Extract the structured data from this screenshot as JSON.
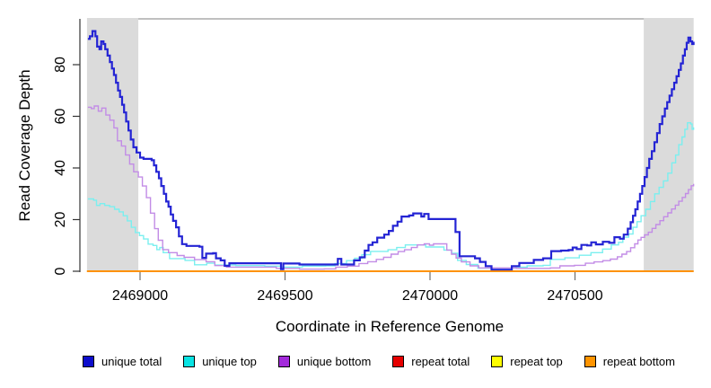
{
  "chart_data": {
    "type": "line",
    "title": "",
    "xlabel": "Coordinate in Reference Genome",
    "ylabel": "Read Coverage Depth",
    "x_ticks": [
      2469000,
      2469500,
      2470000,
      2470500
    ],
    "y_ticks": [
      0,
      20,
      40,
      60,
      80
    ],
    "xlim": [
      2468817,
      2470909
    ],
    "ylim": [
      0,
      97
    ],
    "grid": false,
    "step_interpolation": true,
    "legend_position": "bottom",
    "frame_color": "#808080",
    "axis_color": "#333333",
    "highlight_color": "#DBDBDB",
    "highlight_regions": [
      {
        "x0": 2468817,
        "x1": 2468994
      },
      {
        "x0": 2470737,
        "x1": 2470909
      }
    ],
    "series": [
      {
        "name": "unique total",
        "color": "#2424D4",
        "legend_color": "#0D0DCC",
        "width": 2.2,
        "points": [
          [
            2468820,
            90
          ],
          [
            2468827,
            91
          ],
          [
            2468836,
            93
          ],
          [
            2468846,
            91
          ],
          [
            2468852,
            87
          ],
          [
            2468860,
            86
          ],
          [
            2468866,
            89
          ],
          [
            2468874,
            88
          ],
          [
            2468880,
            86
          ],
          [
            2468888,
            83.5
          ],
          [
            2468896,
            81
          ],
          [
            2468903,
            78.5
          ],
          [
            2468910,
            76
          ],
          [
            2468917,
            73
          ],
          [
            2468924,
            70
          ],
          [
            2468931,
            67.5
          ],
          [
            2468938,
            64.5
          ],
          [
            2468945,
            61.5
          ],
          [
            2468952,
            58
          ],
          [
            2468960,
            54.5
          ],
          [
            2468968,
            51
          ],
          [
            2468977,
            48
          ],
          [
            2468988,
            46
          ],
          [
            2469000,
            44
          ],
          [
            2469012,
            43.5
          ],
          [
            2469040,
            43
          ],
          [
            2469048,
            41
          ],
          [
            2469056,
            38.5
          ],
          [
            2469065,
            36
          ],
          [
            2469073,
            33
          ],
          [
            2469082,
            30
          ],
          [
            2469090,
            27
          ],
          [
            2469098,
            25
          ],
          [
            2469106,
            22
          ],
          [
            2469114,
            19.5
          ],
          [
            2469124,
            17
          ],
          [
            2469134,
            13.5
          ],
          [
            2469145,
            10.5
          ],
          [
            2469160,
            9.8
          ],
          [
            2469205,
            9.5
          ],
          [
            2469215,
            5.2
          ],
          [
            2469228,
            6.8
          ],
          [
            2469252,
            7
          ],
          [
            2469262,
            5
          ],
          [
            2469278,
            4.2
          ],
          [
            2469292,
            2.1
          ],
          [
            2469308,
            3.1
          ],
          [
            2469478,
            3.1
          ],
          [
            2469486,
            0.8
          ],
          [
            2469494,
            3
          ],
          [
            2469550,
            2.6
          ],
          [
            2469636,
            2.6
          ],
          [
            2469682,
            4.8
          ],
          [
            2469694,
            2.6
          ],
          [
            2469738,
            4.2
          ],
          [
            2469758,
            5.4
          ],
          [
            2469775,
            8
          ],
          [
            2469788,
            10.2
          ],
          [
            2469802,
            11.2
          ],
          [
            2469818,
            13
          ],
          [
            2469842,
            14.2
          ],
          [
            2469858,
            15.6
          ],
          [
            2469872,
            17.6
          ],
          [
            2469888,
            19.2
          ],
          [
            2469902,
            21.2
          ],
          [
            2469928,
            21.6
          ],
          [
            2469942,
            22.4
          ],
          [
            2469962,
            22.4
          ],
          [
            2469970,
            21.2
          ],
          [
            2469980,
            22.2
          ],
          [
            2469995,
            20.2
          ],
          [
            2470072,
            20.2
          ],
          [
            2470088,
            15.2
          ],
          [
            2470102,
            5.8
          ],
          [
            2470155,
            5
          ],
          [
            2470172,
            3.6
          ],
          [
            2470192,
            2
          ],
          [
            2470212,
            0.6
          ],
          [
            2470258,
            0.6
          ],
          [
            2470282,
            2
          ],
          [
            2470308,
            3.2
          ],
          [
            2470358,
            4.4
          ],
          [
            2470390,
            5
          ],
          [
            2470418,
            7.8
          ],
          [
            2470452,
            8
          ],
          [
            2470478,
            8.2
          ],
          [
            2470492,
            9.2
          ],
          [
            2470506,
            8.6
          ],
          [
            2470522,
            10.2
          ],
          [
            2470542,
            10
          ],
          [
            2470556,
            11.2
          ],
          [
            2470572,
            10.4
          ],
          [
            2470596,
            11.4
          ],
          [
            2470618,
            11
          ],
          [
            2470636,
            13.2
          ],
          [
            2470655,
            12.6
          ],
          [
            2470668,
            14.2
          ],
          [
            2470682,
            16.5
          ],
          [
            2470692,
            19
          ],
          [
            2470700,
            21.5
          ],
          [
            2470708,
            24
          ],
          [
            2470716,
            27
          ],
          [
            2470724,
            30
          ],
          [
            2470732,
            33
          ],
          [
            2470740,
            36.5
          ],
          [
            2470748,
            40
          ],
          [
            2470756,
            43.5
          ],
          [
            2470765,
            46.5
          ],
          [
            2470774,
            50
          ],
          [
            2470783,
            53.5
          ],
          [
            2470792,
            57
          ],
          [
            2470801,
            60
          ],
          [
            2470810,
            63
          ],
          [
            2470818,
            65.5
          ],
          [
            2470826,
            68
          ],
          [
            2470834,
            70.5
          ],
          [
            2470842,
            73
          ],
          [
            2470850,
            75.5
          ],
          [
            2470858,
            78
          ],
          [
            2470865,
            80.5
          ],
          [
            2470872,
            83.5
          ],
          [
            2470879,
            86
          ],
          [
            2470885,
            88.5
          ],
          [
            2470891,
            90.5
          ],
          [
            2470898,
            89
          ],
          [
            2470904,
            88
          ],
          [
            2470909,
            88.5
          ]
        ]
      },
      {
        "name": "unique top",
        "color": "#7BEFEF",
        "legend_color": "#09E3E3",
        "width": 1.4,
        "points": [
          [
            2468820,
            28
          ],
          [
            2468840,
            27.5
          ],
          [
            2468850,
            25.5
          ],
          [
            2468862,
            26.2
          ],
          [
            2468878,
            25.5
          ],
          [
            2468895,
            25
          ],
          [
            2468912,
            24
          ],
          [
            2468928,
            23
          ],
          [
            2468942,
            21.5
          ],
          [
            2468956,
            19.5
          ],
          [
            2468970,
            17
          ],
          [
            2468984,
            15
          ],
          [
            2468998,
            13.8
          ],
          [
            2469012,
            12.5
          ],
          [
            2469028,
            10.5
          ],
          [
            2469045,
            10
          ],
          [
            2469058,
            8.4
          ],
          [
            2469068,
            9.2
          ],
          [
            2469080,
            7.2
          ],
          [
            2469102,
            4.9
          ],
          [
            2469155,
            4.2
          ],
          [
            2469188,
            2.5
          ],
          [
            2469230,
            3.1
          ],
          [
            2469258,
            2.4
          ],
          [
            2469330,
            2.2
          ],
          [
            2469430,
            2
          ],
          [
            2469485,
            1.6
          ],
          [
            2469560,
            2
          ],
          [
            2469640,
            2.1
          ],
          [
            2469672,
            3
          ],
          [
            2469712,
            4.1
          ],
          [
            2469740,
            5
          ],
          [
            2469765,
            6.4
          ],
          [
            2469795,
            7.7
          ],
          [
            2469855,
            8.3
          ],
          [
            2469885,
            9.2
          ],
          [
            2469915,
            10.2
          ],
          [
            2469958,
            10.2
          ],
          [
            2469985,
            9.4
          ],
          [
            2470032,
            9.4
          ],
          [
            2470048,
            8.2
          ],
          [
            2470075,
            7
          ],
          [
            2470095,
            4.2
          ],
          [
            2470125,
            2.6
          ],
          [
            2470165,
            1.2
          ],
          [
            2470255,
            1.2
          ],
          [
            2470295,
            1.6
          ],
          [
            2470335,
            2.1
          ],
          [
            2470390,
            2.3
          ],
          [
            2470415,
            4.6
          ],
          [
            2470465,
            5.2
          ],
          [
            2470515,
            6.2
          ],
          [
            2470555,
            7.2
          ],
          [
            2470595,
            8.6
          ],
          [
            2470625,
            10.2
          ],
          [
            2470650,
            11.2
          ],
          [
            2470665,
            13.2
          ],
          [
            2470685,
            14.4
          ],
          [
            2470700,
            17
          ],
          [
            2470714,
            19.2
          ],
          [
            2470728,
            21.5
          ],
          [
            2470744,
            24
          ],
          [
            2470760,
            27
          ],
          [
            2470775,
            30
          ],
          [
            2470790,
            32.5
          ],
          [
            2470805,
            35
          ],
          [
            2470820,
            38
          ],
          [
            2470834,
            42
          ],
          [
            2470847,
            45
          ],
          [
            2470858,
            49
          ],
          [
            2470869,
            52
          ],
          [
            2470879,
            55
          ],
          [
            2470888,
            57.5
          ],
          [
            2470899,
            57
          ],
          [
            2470904,
            55
          ],
          [
            2470909,
            55.5
          ]
        ]
      },
      {
        "name": "unique bottom",
        "color": "#C28CE6",
        "legend_color": "#A32ADB",
        "width": 1.4,
        "points": [
          [
            2468820,
            63.5
          ],
          [
            2468832,
            63
          ],
          [
            2468842,
            64
          ],
          [
            2468856,
            62
          ],
          [
            2468868,
            63.2
          ],
          [
            2468882,
            60.5
          ],
          [
            2468896,
            58.5
          ],
          [
            2468910,
            55.5
          ],
          [
            2468922,
            50.5
          ],
          [
            2468936,
            48.5
          ],
          [
            2468950,
            45
          ],
          [
            2468964,
            41.5
          ],
          [
            2468978,
            38.5
          ],
          [
            2468994,
            36.5
          ],
          [
            2469008,
            33
          ],
          [
            2469022,
            28.5
          ],
          [
            2469036,
            22.5
          ],
          [
            2469050,
            16.5
          ],
          [
            2469063,
            12
          ],
          [
            2469078,
            8.4
          ],
          [
            2469098,
            7.2
          ],
          [
            2469128,
            6.1
          ],
          [
            2469152,
            5.4
          ],
          [
            2469188,
            4.5
          ],
          [
            2469228,
            3.7
          ],
          [
            2469258,
            2.2
          ],
          [
            2469298,
            1.6
          ],
          [
            2469470,
            1.1
          ],
          [
            2469550,
            0.8
          ],
          [
            2469635,
            0.9
          ],
          [
            2469675,
            1.6
          ],
          [
            2469715,
            2
          ],
          [
            2469755,
            3
          ],
          [
            2469785,
            3.7
          ],
          [
            2469815,
            4.6
          ],
          [
            2469840,
            5.4
          ],
          [
            2469866,
            6.6
          ],
          [
            2469890,
            7.6
          ],
          [
            2469912,
            8.3
          ],
          [
            2469936,
            9.2
          ],
          [
            2469956,
            10.2
          ],
          [
            2469980,
            10.6
          ],
          [
            2469998,
            10.1
          ],
          [
            2470012,
            10.6
          ],
          [
            2470042,
            10.6
          ],
          [
            2470058,
            8.2
          ],
          [
            2470074,
            6.6
          ],
          [
            2470090,
            5.1
          ],
          [
            2470108,
            3.6
          ],
          [
            2470138,
            2.1
          ],
          [
            2470168,
            1.3
          ],
          [
            2470298,
            1.1
          ],
          [
            2470415,
            1.3
          ],
          [
            2470448,
            2.1
          ],
          [
            2470498,
            2.3
          ],
          [
            2470536,
            3.1
          ],
          [
            2470566,
            3.6
          ],
          [
            2470596,
            4.1
          ],
          [
            2470622,
            4.7
          ],
          [
            2470646,
            5.6
          ],
          [
            2470662,
            6.6
          ],
          [
            2470678,
            7.6
          ],
          [
            2470692,
            9.1
          ],
          [
            2470706,
            10.6
          ],
          [
            2470717,
            12.1
          ],
          [
            2470728,
            13.1
          ],
          [
            2470740,
            14.1
          ],
          [
            2470753,
            15.1
          ],
          [
            2470766,
            16.6
          ],
          [
            2470779,
            18.1
          ],
          [
            2470793,
            19.6
          ],
          [
            2470806,
            21.1
          ],
          [
            2470820,
            22.6
          ],
          [
            2470833,
            24.1
          ],
          [
            2470846,
            25.6
          ],
          [
            2470858,
            27.1
          ],
          [
            2470870,
            28.6
          ],
          [
            2470881,
            30.1
          ],
          [
            2470891,
            31.6
          ],
          [
            2470901,
            33.1
          ],
          [
            2470909,
            33.6
          ]
        ]
      },
      {
        "name": "repeat total",
        "color": "#DD0000",
        "legend_color": "#E60000",
        "width": 1.5,
        "points": [
          [
            2468817,
            0
          ],
          [
            2470909,
            0
          ]
        ]
      },
      {
        "name": "repeat top",
        "color": "#FFFF00",
        "legend_color": "#FFFF00",
        "width": 1.5,
        "points": [
          [
            2468817,
            0
          ],
          [
            2470909,
            0
          ]
        ]
      },
      {
        "name": "repeat bottom",
        "color": "#FF8C00",
        "legend_color": "#FF9400",
        "width": 1.8,
        "points": [
          [
            2468817,
            0
          ],
          [
            2470909,
            0
          ]
        ]
      }
    ]
  },
  "legend": {
    "items": [
      "unique total",
      "unique top",
      "unique bottom",
      "repeat total",
      "repeat top",
      "repeat bottom"
    ]
  }
}
